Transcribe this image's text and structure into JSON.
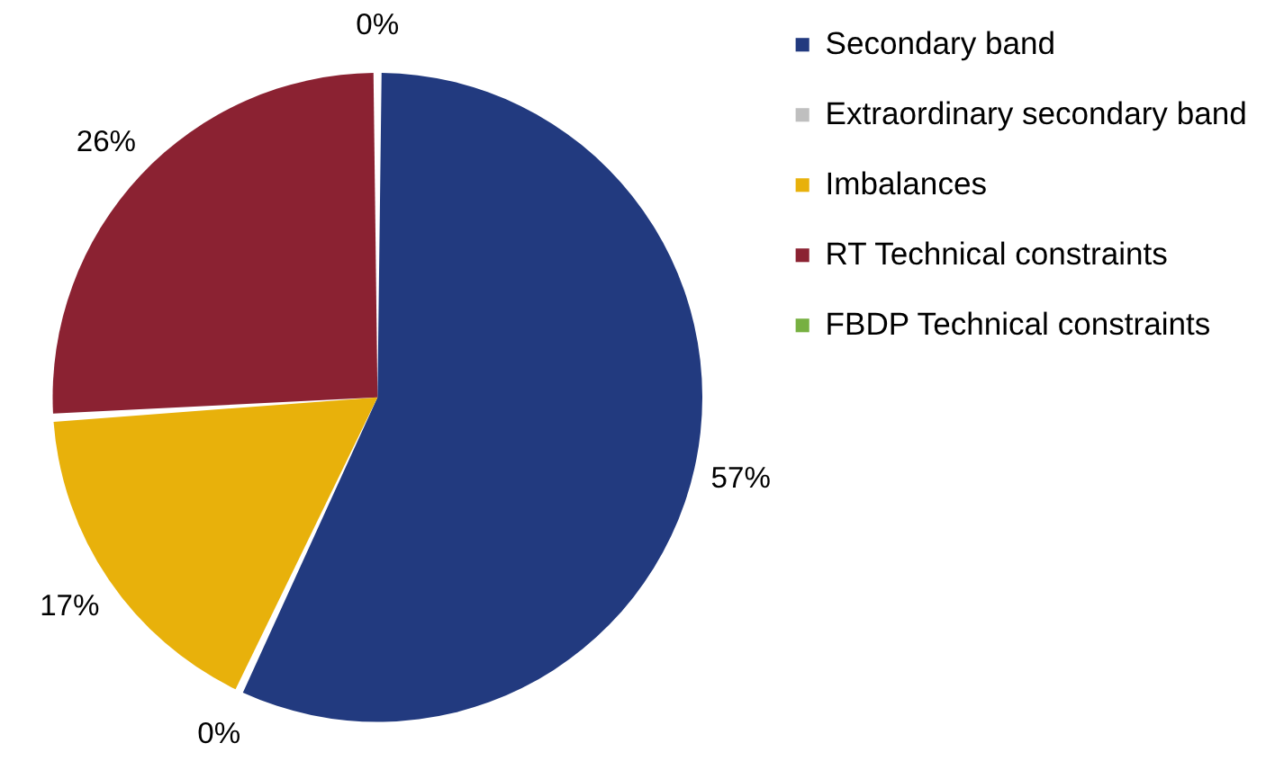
{
  "chart_data": {
    "type": "pie",
    "categories": [
      "Secondary band",
      "Extraordinary secondary band",
      "Imbalances",
      "RT Technical constraints",
      "FBDP Technical constraints"
    ],
    "values": [
      57,
      0,
      17,
      26,
      0
    ],
    "colors": [
      "#223a7f",
      "#bfbfbf",
      "#e8b10b",
      "#8b2232",
      "#77b041"
    ],
    "value_labels": [
      "57%",
      "0%",
      "17%",
      "26%",
      "0%"
    ],
    "legend": "right"
  }
}
